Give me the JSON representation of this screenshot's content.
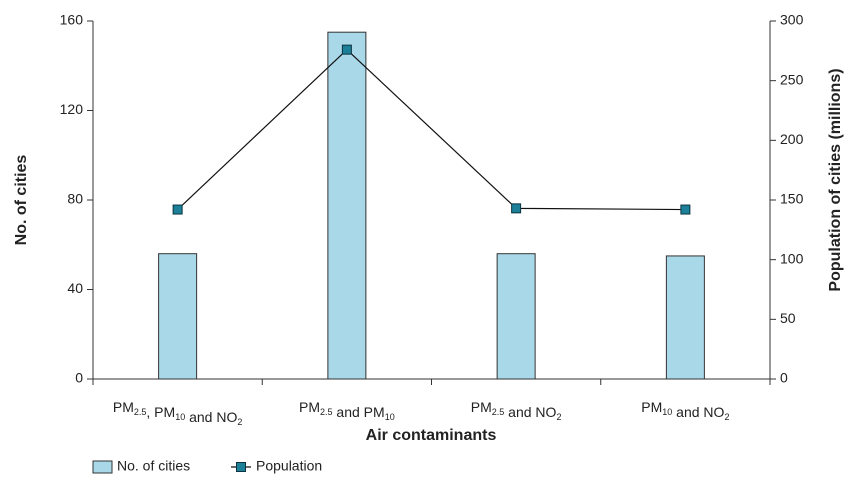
{
  "chart_data": {
    "type": "bar_line",
    "categories": [
      "PM2.5, PM10 and NO2",
      "PM2.5 and PM10",
      "PM2.5 and NO2",
      "PM10 and NO2"
    ],
    "series": [
      {
        "name": "No. of cities",
        "type": "bar",
        "color": "#a9d9e9",
        "values": [
          56,
          155,
          56,
          55
        ]
      },
      {
        "name": "Population",
        "type": "line",
        "axis": "y2",
        "color": "#1b8098",
        "values": [
          142,
          276,
          143,
          142
        ]
      }
    ],
    "xlabel": "Air contaminants",
    "ylabel": "No. of cities",
    "y2label": "Population of cities (millions)",
    "ylim": [
      0,
      160
    ],
    "yticks": [
      0,
      40,
      80,
      120,
      160
    ],
    "y2lim": [
      0,
      300
    ],
    "y2ticks": [
      0,
      50,
      100,
      150,
      200,
      250,
      300
    ],
    "legend": "bottom-left"
  }
}
